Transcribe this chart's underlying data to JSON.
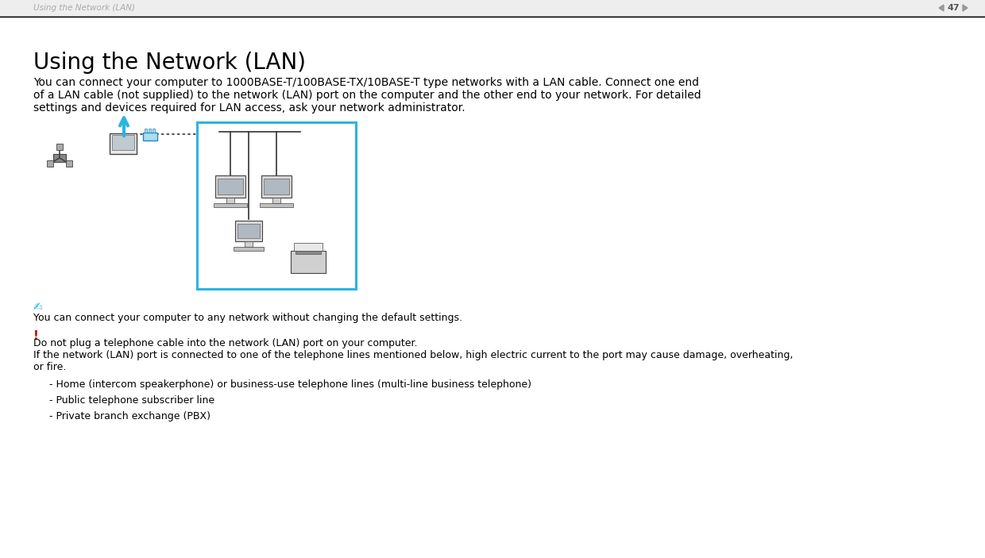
{
  "bg_color": "#ffffff",
  "header_bg": "#eeeeee",
  "header_text": "Using the Network (LAN)",
  "header_text_color": "#aaaaaa",
  "page_number": "47",
  "title": "Using the Network (LAN)",
  "title_fontsize": 20,
  "body_text_1": "You can connect your computer to 1000BASE-T/100BASE-TX/10BASE-T type networks with a LAN cable. Connect one end",
  "body_text_2": "of a LAN cable (not supplied) to the network (LAN) port on the computer and the other end to your network. For detailed",
  "body_text_3": "settings and devices required for LAN access, ask your network administrator.",
  "body_fontsize": 10.0,
  "note_icon_color": "#2ab5e0",
  "note_text": "You can connect your computer to any network without changing the default settings.",
  "warning_icon_color": "#cc0000",
  "warning_text_1": "Do not plug a telephone cable into the network (LAN) port on your computer.",
  "warning_text_2": "If the network (LAN) port is connected to one of the telephone lines mentioned below, high electric current to the port may cause damage, overheating,",
  "warning_text_3": "or fire.",
  "bullet_1": "- Home (intercom speakerphone) or business-use telephone lines (multi-line business telephone)",
  "bullet_2": "- Public telephone subscriber line",
  "bullet_3": "- Private branch exchange (PBX)",
  "box_border_color": "#2ab5e0",
  "separator_color": "#000000",
  "text_color": "#000000",
  "small_fontsize": 9.0,
  "header_fontsize": 7.5
}
